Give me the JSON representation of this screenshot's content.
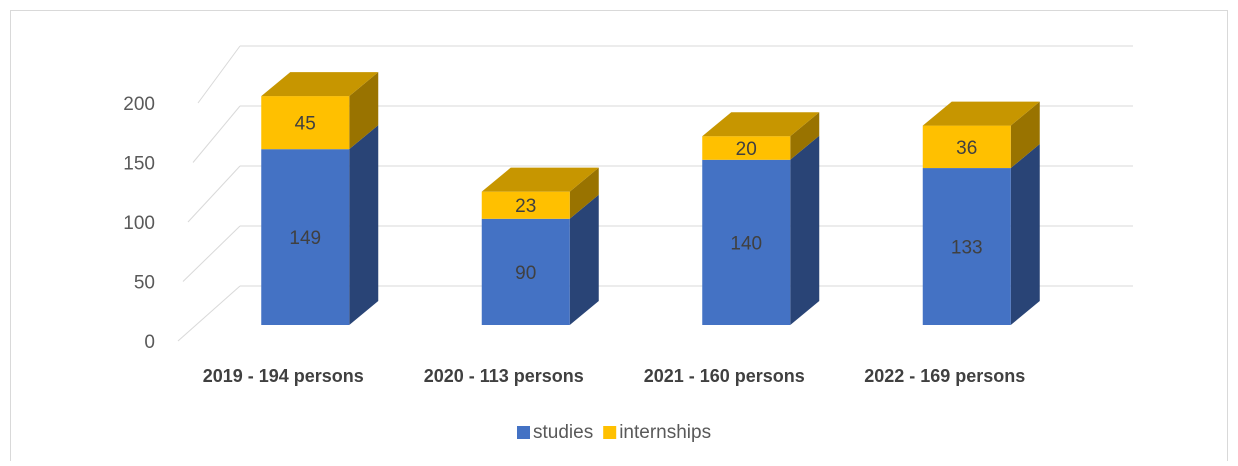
{
  "chart_data": {
    "type": "bar3d_stacked",
    "categories": [
      "2019 - 194 persons",
      "2020 - 113 persons",
      "2021 - 160 persons",
      "2022 - 169 persons"
    ],
    "series": [
      {
        "name": "studies",
        "color": "#4472c4",
        "values": [
          149,
          90,
          140,
          133
        ]
      },
      {
        "name": "internships",
        "color": "#ffc000",
        "values": [
          45,
          23,
          20,
          36
        ]
      }
    ],
    "ylim": [
      0,
      200
    ],
    "yticks": [
      0,
      50,
      100,
      150,
      200
    ],
    "grid": true,
    "legend": "bottom"
  }
}
